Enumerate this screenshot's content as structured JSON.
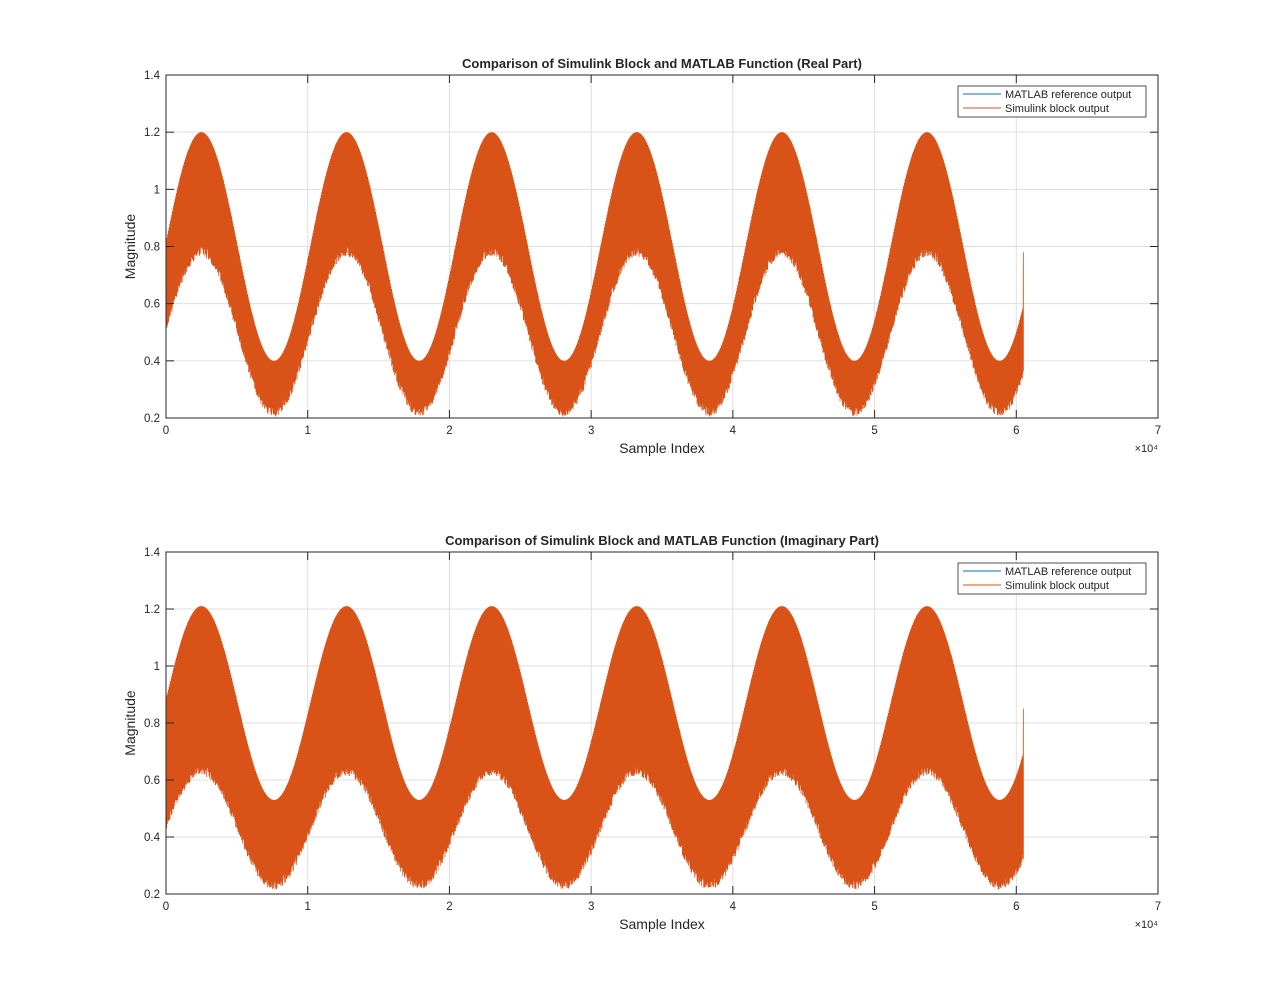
{
  "chart_data": [
    {
      "type": "line",
      "title": "Comparison of Simulink Block and MATLAB Function (Real Part)",
      "xlabel": "Sample Index",
      "ylabel": "Magnitude",
      "xlim": [
        0,
        70000
      ],
      "ylim": [
        0.2,
        1.4
      ],
      "xticks": [
        0,
        1,
        2,
        3,
        4,
        5,
        6,
        7
      ],
      "xtick_labels": [
        "0",
        "1",
        "2",
        "3",
        "4",
        "5",
        "6",
        "7"
      ],
      "x_exponent_label": "×10⁴",
      "yticks": [
        0.2,
        0.4,
        0.6,
        0.8,
        1,
        1.2,
        1.4
      ],
      "ytick_labels": [
        "0.2",
        "0.4",
        "0.6",
        "0.8",
        "1",
        "1.2",
        "1.4"
      ],
      "grid": true,
      "legend_position": "top-right",
      "envelope": {
        "n_samples": 60500,
        "period": 10240,
        "phase_peak_sample": 2500,
        "upper_max": 1.2,
        "upper_min": 0.4,
        "lower_max": 0.8,
        "lower_min": 0.24,
        "start_value": 0.52,
        "end_value": 0.78
      },
      "series": [
        {
          "name": "MATLAB reference output",
          "color": "#0072BD"
        },
        {
          "name": "Simulink block output",
          "color": "#D95319"
        }
      ]
    },
    {
      "type": "line",
      "title": "Comparison of Simulink Block and MATLAB Function (Imaginary Part)",
      "xlabel": "Sample Index",
      "ylabel": "Magnitude",
      "xlim": [
        0,
        70000
      ],
      "ylim": [
        0.2,
        1.4
      ],
      "xticks": [
        0,
        1,
        2,
        3,
        4,
        5,
        6,
        7
      ],
      "xtick_labels": [
        "0",
        "1",
        "2",
        "3",
        "4",
        "5",
        "6",
        "7"
      ],
      "x_exponent_label": "×10⁴",
      "yticks": [
        0.2,
        0.4,
        0.6,
        0.8,
        1,
        1.2,
        1.4
      ],
      "ytick_labels": [
        "0.2",
        "0.4",
        "0.6",
        "0.8",
        "1",
        "1.2",
        "1.4"
      ],
      "grid": true,
      "legend_position": "top-right",
      "envelope": {
        "n_samples": 60500,
        "period": 10240,
        "phase_peak_sample": 2500,
        "upper_max": 1.21,
        "upper_min": 0.53,
        "lower_max": 0.65,
        "lower_min": 0.25,
        "start_value": 0.45,
        "end_value": 0.85
      },
      "series": [
        {
          "name": "MATLAB reference output",
          "color": "#0072BD"
        },
        {
          "name": "Simulink block output",
          "color": "#D95319"
        }
      ]
    }
  ]
}
